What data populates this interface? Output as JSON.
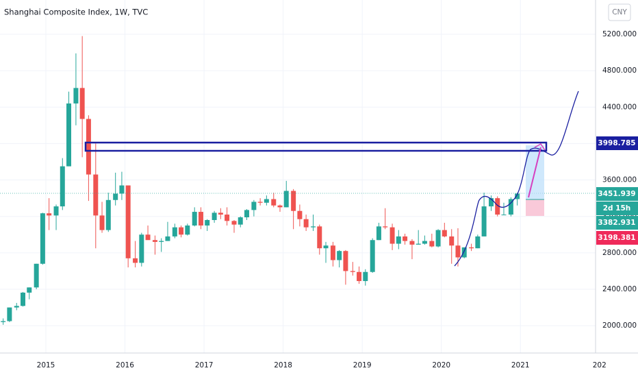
{
  "chart_data": {
    "type": "candlestick",
    "title": "Shanghai Composite Index, 1W, TVC",
    "currency": "CNY",
    "up_color": "#26a69a",
    "down_color": "#ef5350",
    "grid": true,
    "xlim": [
      2014.42,
      2021.95
    ],
    "ylim": [
      1700,
      5576
    ],
    "xticks": [
      2015,
      2016,
      2017,
      2018,
      2019,
      2020,
      2021,
      {
        "value": 2022,
        "label": "202"
      }
    ],
    "yticks": [
      {
        "value": 2000,
        "label": "2000.000"
      },
      {
        "value": 2400,
        "label": "2400.000"
      },
      {
        "value": 2800,
        "label": "2800.000"
      },
      {
        "value": 3200,
        "label": "3200.000"
      },
      {
        "value": 3600,
        "label": "3600.000"
      },
      {
        "value": 4000,
        "label": "4000.000"
      },
      {
        "value": 4400,
        "label": "4400.000"
      },
      {
        "value": 4800,
        "label": "4800.000"
      },
      {
        "value": 5200,
        "label": "5200.000"
      }
    ],
    "x": [
      2014.46,
      2014.54,
      2014.63,
      2014.71,
      2014.79,
      2014.88,
      2014.96,
      2015.04,
      2015.13,
      2015.21,
      2015.29,
      2015.38,
      2015.46,
      2015.54,
      2015.63,
      2015.71,
      2015.79,
      2015.88,
      2015.96,
      2016.04,
      2016.13,
      2016.21,
      2016.29,
      2016.38,
      2016.46,
      2016.54,
      2016.63,
      2016.71,
      2016.79,
      2016.88,
      2016.96,
      2017.04,
      2017.13,
      2017.21,
      2017.29,
      2017.38,
      2017.46,
      2017.54,
      2017.63,
      2017.71,
      2017.79,
      2017.88,
      2017.96,
      2018.04,
      2018.13,
      2018.21,
      2018.29,
      2018.38,
      2018.46,
      2018.54,
      2018.63,
      2018.71,
      2018.79,
      2018.88,
      2018.96,
      2019.04,
      2019.13,
      2019.21,
      2019.29,
      2019.38,
      2019.46,
      2019.54,
      2019.63,
      2019.71,
      2019.79,
      2019.88,
      2019.96,
      2020.04,
      2020.13,
      2020.21,
      2020.29,
      2020.38,
      2020.46,
      2020.54,
      2020.63,
      2020.71,
      2020.79,
      2020.88,
      2020.96
    ],
    "open": [
      2040,
      2050,
      2200,
      2217,
      2363,
      2420,
      2680,
      3234,
      3210,
      3310,
      3750,
      4440,
      4610,
      4270,
      3660,
      3210,
      3050,
      3380,
      3450,
      3540,
      2740,
      2690,
      3000,
      2940,
      2920,
      2930,
      2980,
      3080,
      3000,
      3100,
      3250,
      3100,
      3160,
      3240,
      3220,
      3150,
      3110,
      3190,
      3270,
      3360,
      3350,
      3390,
      3320,
      3300,
      3480,
      3260,
      3170,
      3080,
      3090,
      2850,
      2880,
      2720,
      2820,
      2600,
      2590,
      2490,
      2590,
      2940,
      3090,
      3080,
      2900,
      2980,
      2930,
      2890,
      2900,
      2930,
      2870,
      3050,
      2980,
      2880,
      2750,
      2860,
      2850,
      2980,
      3310,
      3400,
      3220,
      3220,
      3390
    ],
    "high": [
      2080,
      2200,
      2250,
      2370,
      2420,
      2680,
      3240,
      3400,
      3330,
      3840,
      4570,
      4990,
      5180,
      4310,
      4000,
      3360,
      3460,
      3680,
      3690,
      3540,
      2930,
      3020,
      3100,
      2990,
      2960,
      3140,
      3120,
      3100,
      3120,
      3300,
      3300,
      3170,
      3260,
      3290,
      3300,
      3160,
      3200,
      3280,
      3380,
      3400,
      3430,
      3460,
      3330,
      3590,
      3500,
      3330,
      3220,
      3220,
      3110,
      2920,
      2920,
      2830,
      2830,
      2700,
      2650,
      2620,
      2960,
      3130,
      3290,
      3120,
      3050,
      3010,
      2950,
      3050,
      2990,
      3010,
      3060,
      3130,
      3060,
      3070,
      2860,
      2900,
      3000,
      3460,
      3430,
      3420,
      3350,
      3410,
      3460
    ],
    "low": [
      2010,
      2040,
      2170,
      2210,
      2290,
      2400,
      2670,
      3050,
      3050,
      3270,
      3750,
      4200,
      3850,
      3370,
      2850,
      3020,
      3030,
      3320,
      3380,
      2640,
      2640,
      2650,
      2950,
      2780,
      2810,
      2930,
      2960,
      2970,
      2990,
      3090,
      3060,
      3040,
      3130,
      3170,
      3100,
      3020,
      3080,
      3160,
      3200,
      3320,
      3320,
      3300,
      3250,
      3300,
      3060,
      3090,
      3040,
      3040,
      2780,
      2690,
      2650,
      2640,
      2450,
      2550,
      2460,
      2440,
      2580,
      2940,
      3060,
      2830,
      2840,
      2890,
      2730,
      2890,
      2890,
      2860,
      2860,
      2970,
      2680,
      2650,
      2740,
      2820,
      2850,
      2980,
      3260,
      3200,
      3220,
      3200,
      3320
    ],
    "close": [
      2050,
      2200,
      2217,
      2363,
      2420,
      2680,
      3234,
      3210,
      3310,
      3750,
      4440,
      4610,
      4270,
      3660,
      3210,
      3050,
      3380,
      3450,
      3540,
      2740,
      2690,
      3000,
      2940,
      2920,
      2930,
      2980,
      3080,
      3000,
      3100,
      3250,
      3100,
      3160,
      3240,
      3220,
      3150,
      3110,
      3190,
      3270,
      3360,
      3350,
      3390,
      3320,
      3300,
      3480,
      3260,
      3170,
      3080,
      3090,
      2850,
      2880,
      2720,
      2820,
      2600,
      2590,
      2490,
      2590,
      2940,
      3090,
      3080,
      2900,
      2980,
      2930,
      2890,
      2900,
      2930,
      2870,
      3050,
      2980,
      2880,
      2750,
      2860,
      2850,
      2980,
      3310,
      3400,
      3220,
      3220,
      3390,
      3450
    ],
    "price_labels": [
      {
        "value": 3998.785,
        "color": "#1a1fa0"
      },
      {
        "value": 3451.939,
        "color": "#26a69a"
      },
      {
        "label": "2d 15h",
        "color": "#26a69a"
      },
      {
        "value": 3382.931,
        "color": "#26a69a"
      },
      {
        "value": 3198.381,
        "color": "#ef2a5a"
      }
    ]
  }
}
